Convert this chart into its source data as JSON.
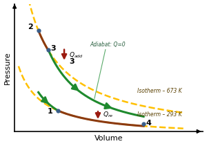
{
  "xlabel": "Volume",
  "ylabel": "Pressure",
  "bg_color": "#ffffff",
  "p2": [
    2.2,
    8.8
  ],
  "p3": [
    2.7,
    7.2
  ],
  "p1": [
    3.2,
    2.2
  ],
  "p4": [
    7.5,
    1.1
  ],
  "gamma": 1.4,
  "isotherm_color": "#FFC000",
  "isotherm_linestyle": "--",
  "isotherm_linewidth": 1.8,
  "green_color": "#1f8a2e",
  "brown_color": "#8B3A10",
  "point_color": "#3a5f8a",
  "red_arrow_color": "#9B1B10",
  "adiabat_line_color": "#5aaa6a",
  "annotation_fontsize": 6.5,
  "axis_label_fontsize": 8,
  "point_label_fontsize": 8
}
